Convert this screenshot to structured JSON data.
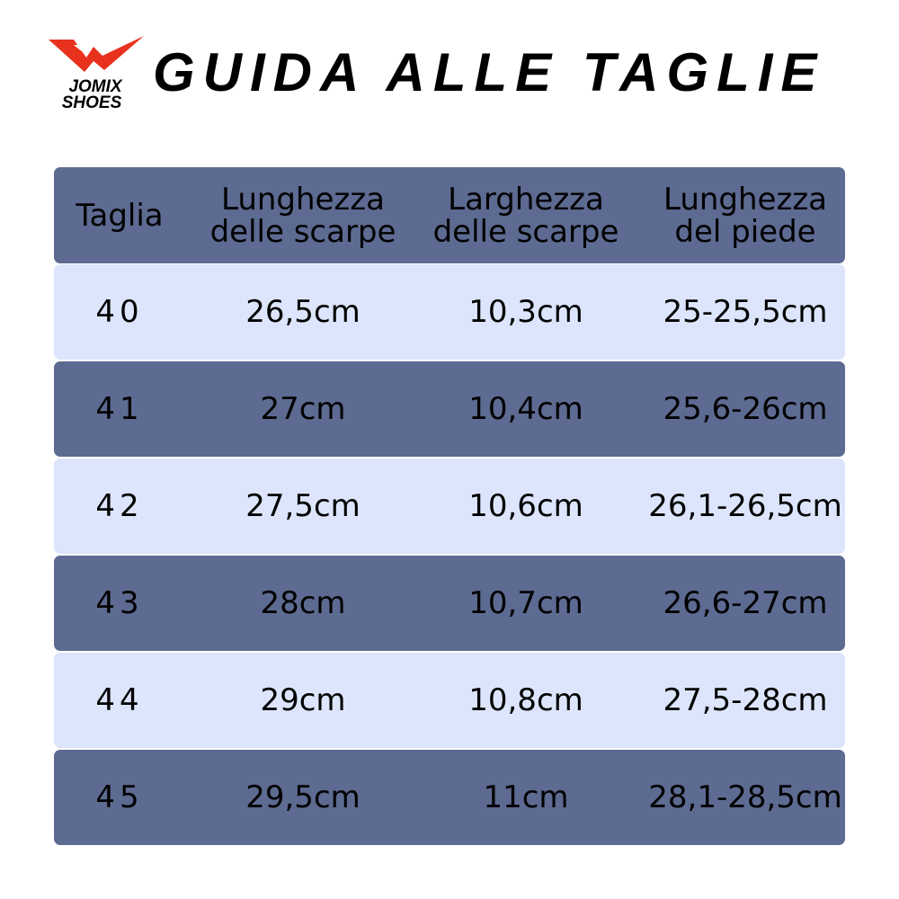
{
  "brand": {
    "logo_text_line1": "JOMIX",
    "logo_text_line2": "SHOES",
    "logo_color": "#e8321e"
  },
  "title": "GUIDA ALLE TAGLIE",
  "colors": {
    "header_row": "#5d6a91",
    "dark_row": "#5d6a91",
    "light_row": "#dce5fb"
  },
  "table": {
    "headers": [
      "Taglia",
      "Lunghezza delle scarpe",
      "Larghezza delle scarpe",
      "Lunghezza del piede"
    ],
    "header_lines": [
      [
        "Taglia"
      ],
      [
        "Lunghezza",
        "delle scarpe"
      ],
      [
        "Larghezza",
        "delle scarpe"
      ],
      [
        "Lunghezza",
        "del piede"
      ]
    ],
    "rows": [
      [
        "40",
        "26,5cm",
        "10,3cm",
        "25-25,5cm"
      ],
      [
        "41",
        "27cm",
        "10,4cm",
        "25,6-26cm"
      ],
      [
        "42",
        "27,5cm",
        "10,6cm",
        "26,1-26,5cm"
      ],
      [
        "43",
        "28cm",
        "10,7cm",
        "26,6-27cm"
      ],
      [
        "44",
        "29cm",
        "10,8cm",
        "27,5-28cm"
      ],
      [
        "45",
        "29,5cm",
        "11cm",
        "28,1-28,5cm"
      ]
    ]
  }
}
